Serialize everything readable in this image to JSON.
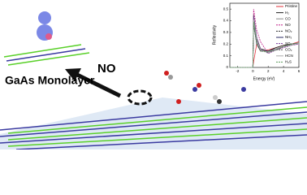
{
  "chart_data": {
    "type": "line",
    "x_label": "Energy (eV)",
    "y_label": "Reflectivity",
    "x": [
      -3,
      -1,
      0,
      0.1,
      0.5,
      1,
      2,
      3,
      4,
      5,
      6
    ],
    "xlim": [
      -3,
      6
    ],
    "xticks": [
      -2,
      0,
      2,
      4,
      6
    ],
    "ylim": [
      0,
      0.55
    ],
    "yticks": [
      0.0,
      0.1,
      0.2,
      0.3,
      0.4,
      0.5
    ],
    "series": [
      {
        "name": "Pristine",
        "color": "#e0303a",
        "dashed": false,
        "values": [
          0,
          0,
          0,
          0.05,
          0.2,
          0.14,
          0.15,
          0.17,
          0.19,
          0.2,
          0.22
        ]
      },
      {
        "name": "H₂",
        "color": "#222222",
        "dashed": false,
        "values": [
          0,
          0,
          0,
          0.45,
          0.25,
          0.16,
          0.14,
          0.17,
          0.19,
          0.2,
          0.21
        ]
      },
      {
        "name": "CO",
        "color": "#888888",
        "dashed": false,
        "values": [
          0,
          0,
          0,
          0.42,
          0.24,
          0.15,
          0.13,
          0.16,
          0.18,
          0.2,
          0.21
        ]
      },
      {
        "name": "NO",
        "color": "#c0208a",
        "dashed": true,
        "values": [
          0,
          0,
          0,
          0.5,
          0.32,
          0.22,
          0.12,
          0.15,
          0.17,
          0.19,
          0.2
        ]
      },
      {
        "name": "NO₂",
        "color": "#333333",
        "dashed": true,
        "values": [
          0,
          0,
          0,
          0.4,
          0.22,
          0.15,
          0.13,
          0.15,
          0.18,
          0.19,
          0.21
        ]
      },
      {
        "name": "NH₃",
        "color": "#2a2a60",
        "dashed": false,
        "values": [
          0,
          0,
          0,
          0.38,
          0.2,
          0.14,
          0.14,
          0.16,
          0.18,
          0.2,
          0.21
        ]
      },
      {
        "name": "SO₂",
        "color": "#7a3a9a",
        "dashed": true,
        "values": [
          0,
          0,
          0,
          0.44,
          0.26,
          0.16,
          0.12,
          0.15,
          0.17,
          0.19,
          0.2
        ]
      },
      {
        "name": "CO₂",
        "color": "#555555",
        "dashed": true,
        "values": [
          0,
          0,
          0,
          0.36,
          0.2,
          0.15,
          0.14,
          0.16,
          0.18,
          0.2,
          0.21
        ]
      },
      {
        "name": "HCN",
        "color": "#aaaaaa",
        "dashed": false,
        "values": [
          0,
          0,
          0,
          0.41,
          0.23,
          0.15,
          0.13,
          0.16,
          0.18,
          0.19,
          0.21
        ]
      },
      {
        "name": "H₂S",
        "color": "#5a9a5a",
        "dashed": true,
        "values": [
          0,
          0,
          0,
          0.39,
          0.21,
          0.14,
          0.13,
          0.15,
          0.18,
          0.2,
          0.21
        ]
      }
    ]
  },
  "labels": {
    "monolayer": "GaAs Monolayer",
    "molecule": "NO"
  }
}
